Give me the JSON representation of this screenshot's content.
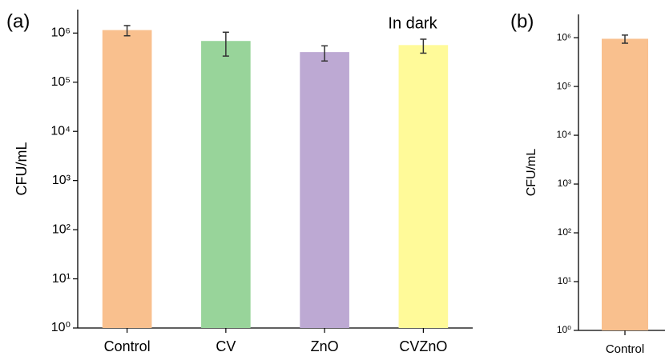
{
  "chart_data": [
    {
      "type": "bar",
      "panel_label": "(a)",
      "annotation": "In dark",
      "ylabel": "CFU/mL",
      "categories": [
        "Control",
        "CV",
        "ZnO",
        "CVZnO"
      ],
      "values": [
        1150000,
        690000,
        410000,
        570000
      ],
      "errors": [
        270000,
        350000,
        140000,
        180000
      ],
      "colors": [
        "#f9c08e",
        "#98d49a",
        "#bda9d3",
        "#fffa99"
      ],
      "log_scale": true,
      "ylim": [
        1,
        3000000
      ],
      "yticks": [
        {
          "value": 1,
          "label": "10⁰"
        },
        {
          "value": 10,
          "label": "10¹"
        },
        {
          "value": 100,
          "label": "10²"
        },
        {
          "value": 1000,
          "label": "10³"
        },
        {
          "value": 10000,
          "label": "10⁴"
        },
        {
          "value": 100000,
          "label": "10⁵"
        },
        {
          "value": 1000000,
          "label": "10⁶"
        }
      ]
    },
    {
      "type": "bar",
      "panel_label": "(b)",
      "ylabel": "CFU/mL",
      "categories": [
        "Control"
      ],
      "values": [
        950000
      ],
      "errors": [
        180000
      ],
      "colors": [
        "#f9c08e"
      ],
      "log_scale": true,
      "ylim": [
        1,
        3000000
      ],
      "yticks": [
        {
          "value": 1,
          "label": "10⁰"
        },
        {
          "value": 10,
          "label": "10¹"
        },
        {
          "value": 100,
          "label": "10²"
        },
        {
          "value": 1000,
          "label": "10³"
        },
        {
          "value": 10000,
          "label": "10⁴"
        },
        {
          "value": 100000,
          "label": "10⁵"
        },
        {
          "value": 1000000,
          "label": "10⁶"
        }
      ]
    }
  ]
}
